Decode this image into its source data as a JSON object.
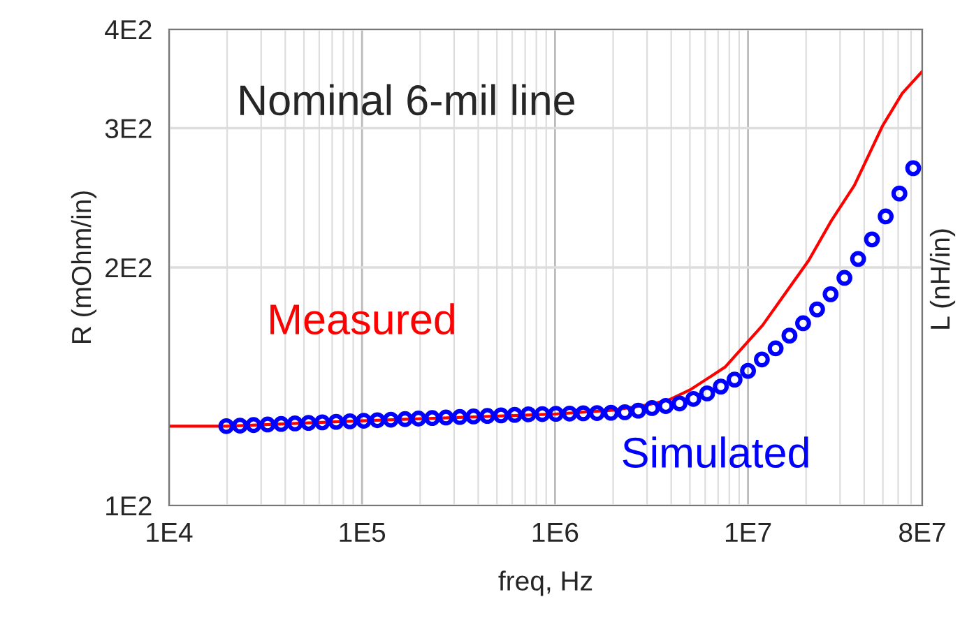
{
  "chart_data": {
    "type": "line",
    "xlabel": "freq, Hz",
    "ylabel": "R (mOhm/in)",
    "y2label": "L (nH/in)",
    "annotations": [
      "Nominal 6-mil line"
    ],
    "log": "xy",
    "grid": true,
    "xlim": [
      10000,
      80000000
    ],
    "xticks": [
      {
        "value": 10000,
        "label": "1E4"
      },
      {
        "value": 100000,
        "label": "1E5"
      },
      {
        "value": 1000000,
        "label": "1E6"
      },
      {
        "value": 10000000,
        "label": "1E7"
      },
      {
        "value": 80000000,
        "label": "8E7"
      }
    ],
    "ylim": [
      100,
      400
    ],
    "yticks": [
      {
        "value": 100,
        "label": "1E2"
      },
      {
        "value": 200,
        "label": "2E2"
      },
      {
        "value": 300,
        "label": "3E2"
      },
      {
        "value": 400,
        "label": "4E2"
      }
    ],
    "series": [
      {
        "name": "Measured",
        "color": "#ff0000",
        "marker": "none",
        "x": [
          10000,
          20000,
          100000,
          1000000,
          2000000,
          3000000,
          3900000,
          5000000,
          7600000,
          11900000,
          15000000,
          20600000,
          27000000,
          35600000,
          49800000,
          63000000,
          80000000
        ],
        "values": [
          126,
          126,
          128,
          130.5,
          132,
          134,
          136,
          140,
          149.6,
          169,
          183,
          204,
          229,
          254,
          302,
          332,
          354
        ]
      },
      {
        "name": "Simulated",
        "color": "#0000ff",
        "type": "scatter",
        "marker": "circle",
        "x": [
          19800,
          23300,
          27400,
          32400,
          38100,
          44900,
          52800,
          62200,
          73400,
          86500,
          102000,
          120000,
          141000,
          167000,
          196000,
          231000,
          272000,
          321000,
          378000,
          446000,
          525000,
          618000,
          728000,
          859000,
          1010000,
          1190000,
          1400000,
          1650000,
          1950000,
          2300000,
          2700000,
          3180000,
          3750000,
          4420000,
          5210000,
          6140000,
          7230000,
          8520000,
          10000000,
          11800000,
          13900000,
          16400000,
          19300000,
          22800000,
          26800000,
          31600000,
          37200000,
          43900000,
          51700000,
          60900000,
          71800000
        ],
        "values": [
          126,
          126.2,
          126.4,
          126.6,
          126.8,
          127,
          127.2,
          127.4,
          127.6,
          127.8,
          128,
          128.2,
          128.4,
          128.6,
          128.8,
          129,
          129.2,
          129.4,
          129.6,
          129.8,
          130,
          130.2,
          130.4,
          130.5,
          130.6,
          130.7,
          130.8,
          130.9,
          131,
          131.2,
          131.8,
          132.8,
          133.6,
          134.6,
          136.4,
          138.6,
          141.4,
          144.3,
          148,
          153,
          158,
          164,
          170,
          177,
          185,
          194,
          205,
          217,
          232,
          248,
          267
        ]
      }
    ]
  }
}
